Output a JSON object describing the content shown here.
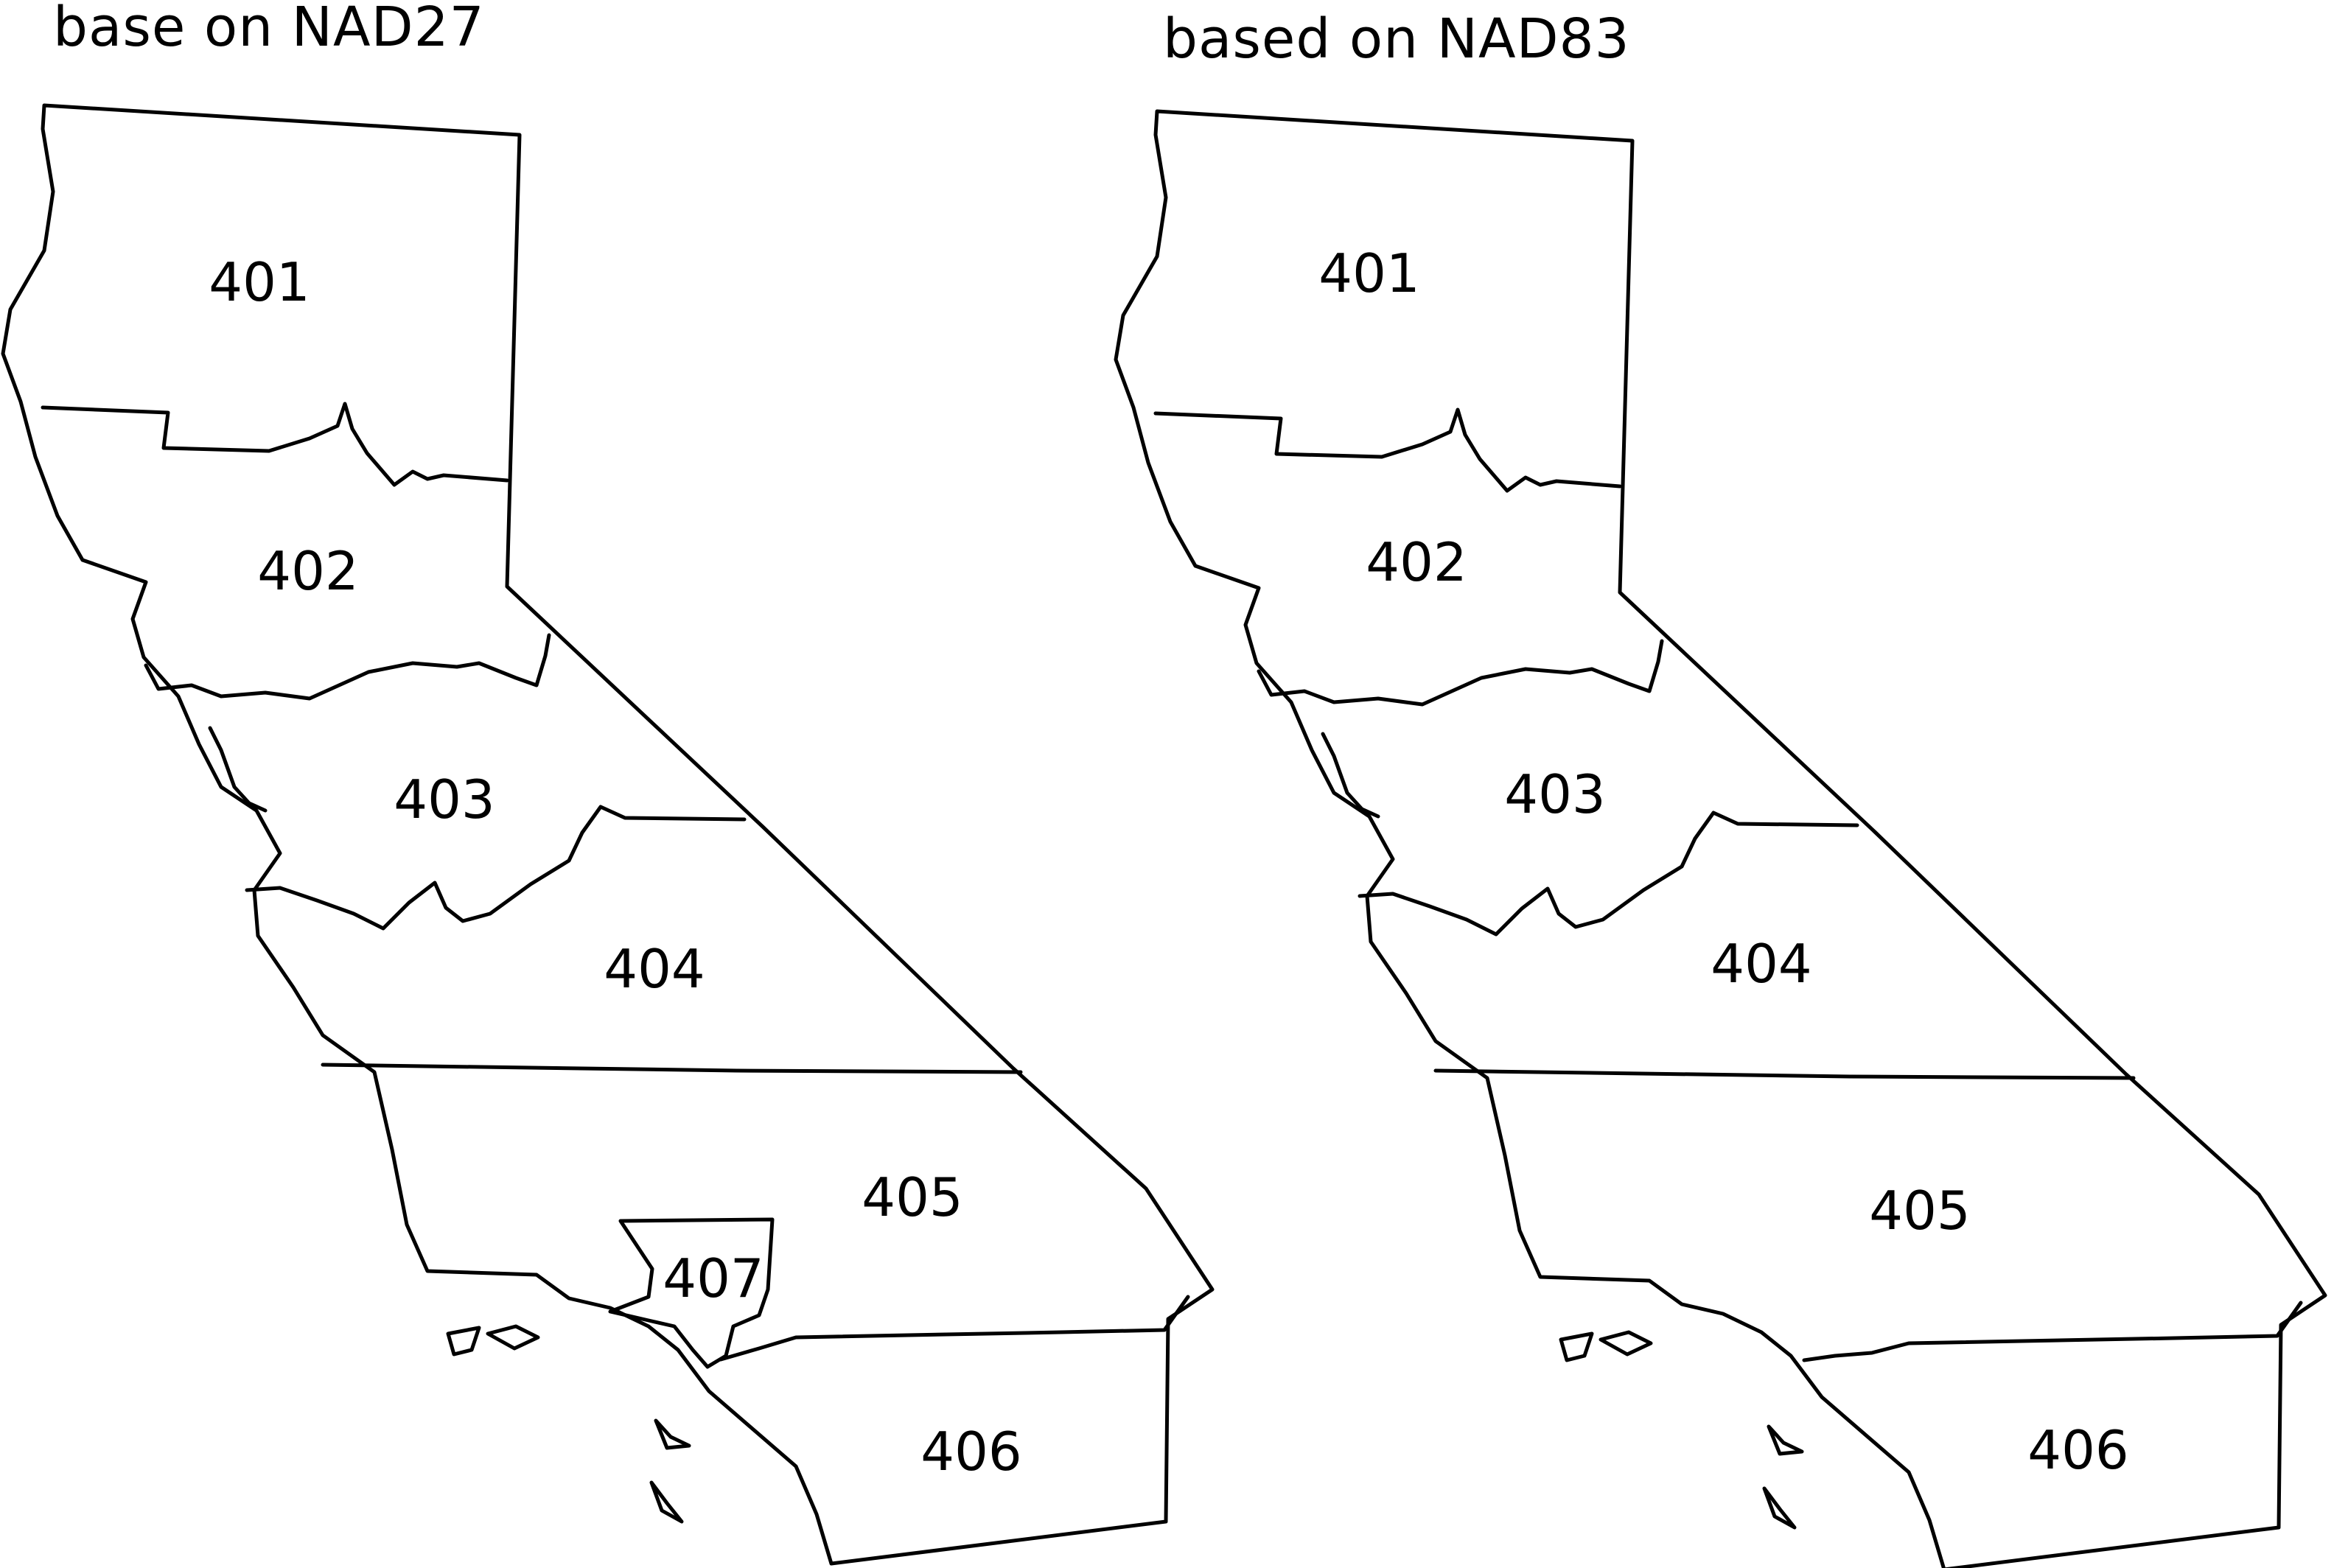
{
  "panels": [
    {
      "title": "base on NAD27",
      "zones": [
        "401",
        "402",
        "403",
        "404",
        "405",
        "406",
        "407"
      ]
    },
    {
      "title": "based on NAD83",
      "zones": [
        "401",
        "402",
        "403",
        "404",
        "405",
        "406"
      ]
    }
  ],
  "colors": {
    "outline": "#000000",
    "fill": "#ffffff"
  }
}
